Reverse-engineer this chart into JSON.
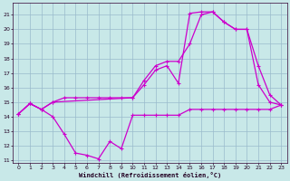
{
  "xlabel": "Windchill (Refroidissement éolien,°C)",
  "background_color": "#c8e8e8",
  "grid_color": "#99bbcc",
  "line_color": "#cc00cc",
  "xlim": [
    -0.5,
    23.5
  ],
  "ylim": [
    10.8,
    21.8
  ],
  "yticks": [
    11,
    12,
    13,
    14,
    15,
    16,
    17,
    18,
    19,
    20,
    21
  ],
  "xticks": [
    0,
    1,
    2,
    3,
    4,
    5,
    6,
    7,
    8,
    9,
    10,
    11,
    12,
    13,
    14,
    15,
    16,
    17,
    18,
    19,
    20,
    21,
    22,
    23
  ],
  "line1_x": [
    0,
    1,
    2,
    3,
    4,
    5,
    6,
    7,
    8,
    9,
    10,
    11,
    12,
    13,
    14,
    15,
    16,
    17,
    18,
    19,
    20,
    21,
    22,
    23
  ],
  "line1_y": [
    14.2,
    14.9,
    14.5,
    14.0,
    12.8,
    11.5,
    11.35,
    11.1,
    12.3,
    11.8,
    14.1,
    14.1,
    14.1,
    14.1,
    14.1,
    14.5,
    14.5,
    14.5,
    14.5,
    14.5,
    14.5,
    14.5,
    14.5,
    14.8
  ],
  "line2_x": [
    0,
    1,
    2,
    3,
    4,
    5,
    6,
    7,
    8,
    9,
    10,
    11,
    12,
    13,
    14,
    15,
    16,
    17,
    18,
    19,
    20,
    21,
    22,
    23
  ],
  "line2_y": [
    14.2,
    14.9,
    14.5,
    15.0,
    15.3,
    15.3,
    15.3,
    15.3,
    15.3,
    15.3,
    15.3,
    16.2,
    17.2,
    17.5,
    16.3,
    21.1,
    21.2,
    21.2,
    20.5,
    20.0,
    20.0,
    16.2,
    15.0,
    14.8
  ],
  "line3_x": [
    0,
    1,
    2,
    3,
    10,
    11,
    12,
    13,
    14,
    15,
    16,
    17,
    18,
    19,
    20,
    21,
    22,
    23
  ],
  "line3_y": [
    14.2,
    14.9,
    14.5,
    15.0,
    15.3,
    16.5,
    17.5,
    17.8,
    17.8,
    19.0,
    21.0,
    21.2,
    20.5,
    20.0,
    20.0,
    17.5,
    15.5,
    14.8
  ]
}
